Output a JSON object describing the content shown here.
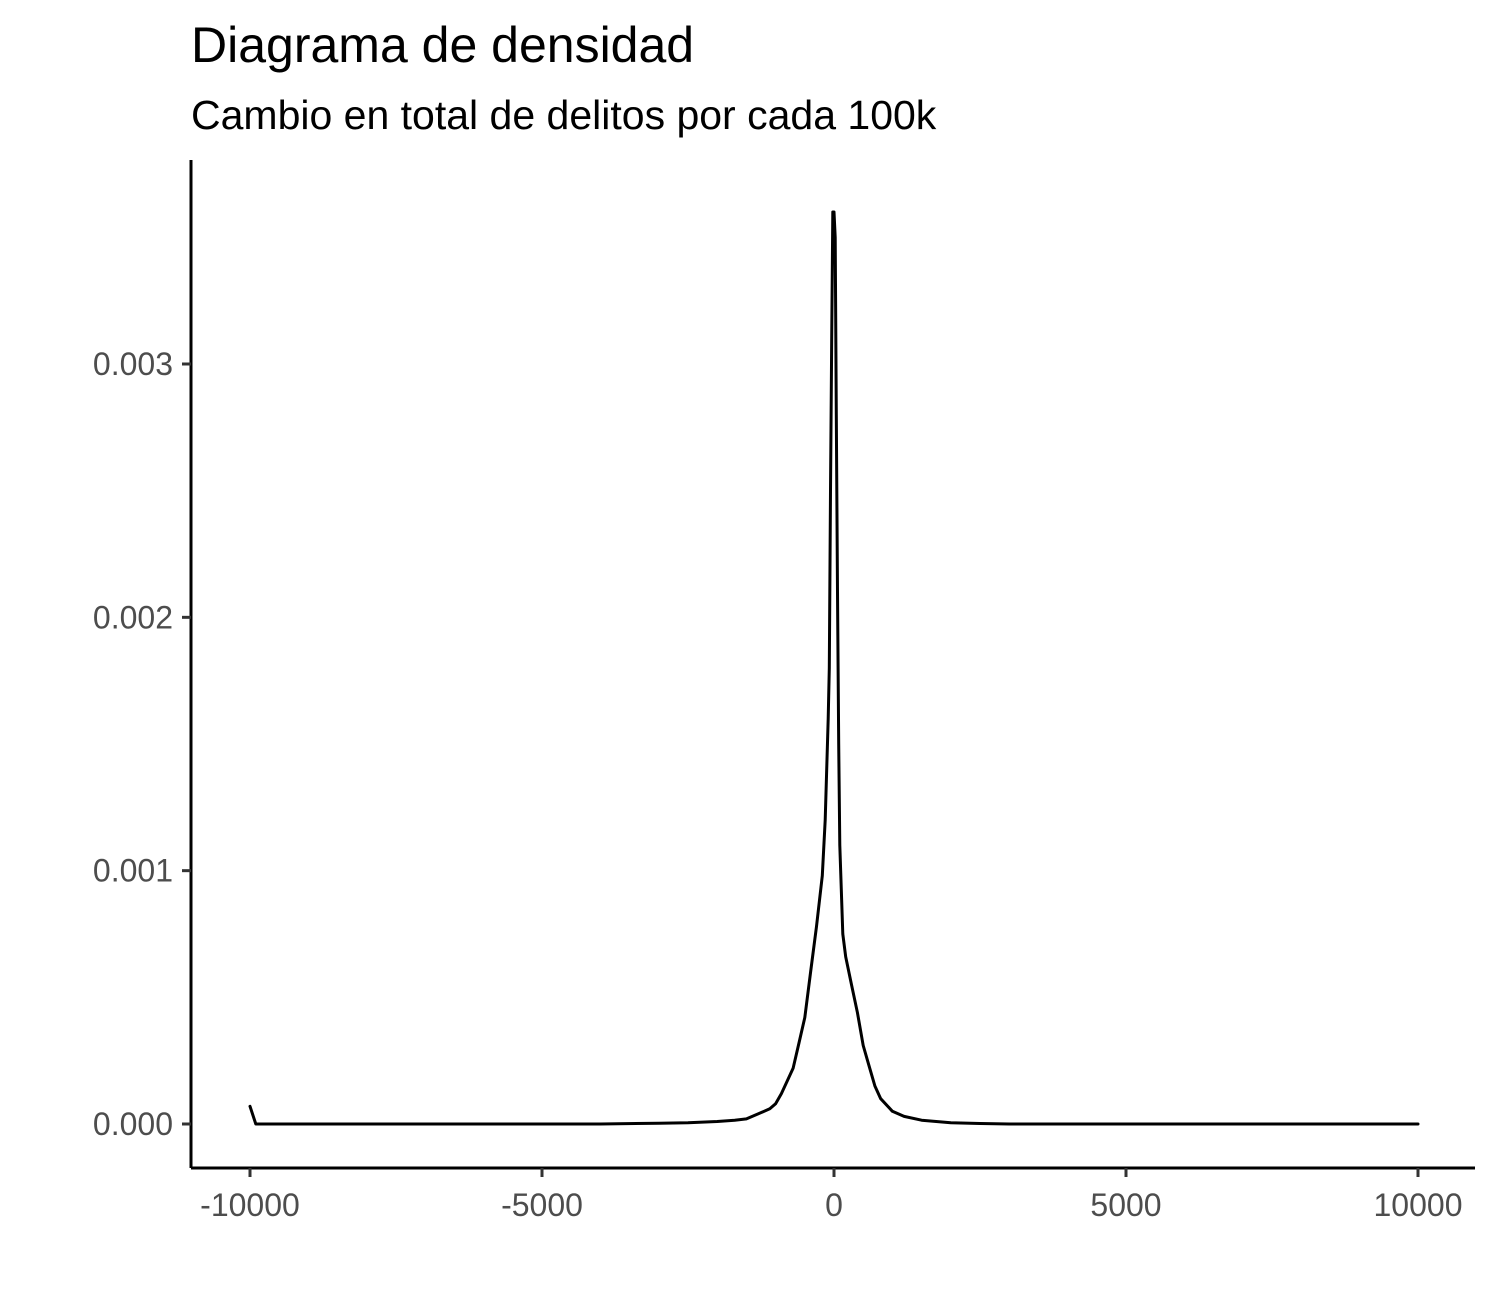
{
  "chart_data": {
    "type": "line",
    "title": "Diagrama de densidad",
    "subtitle": "Cambio en total de delitos por cada 100k",
    "xlabel": "",
    "ylabel": "",
    "xlim": [
      -11000,
      11000
    ],
    "ylim": [
      -0.00018,
      0.0038
    ],
    "grid": false,
    "x_ticks": [
      -10000,
      -5000,
      0,
      5000,
      10000
    ],
    "x_tick_labels": [
      "-10000",
      "-5000",
      "0",
      "5000",
      "10000"
    ],
    "y_ticks": [
      0,
      0.001,
      0.002,
      0.003
    ],
    "y_tick_labels": [
      "0.000",
      "0.001",
      "0.002",
      "0.003"
    ],
    "series": [
      {
        "color": "#000000",
        "x": [
          -10000,
          -9900,
          -9500,
          -8000,
          -6000,
          -4000,
          -3000,
          -2500,
          -2000,
          -1700,
          -1500,
          -1300,
          -1100,
          -1000,
          -900,
          -700,
          -600,
          -500,
          -400,
          -300,
          -200,
          -150,
          -100,
          -80,
          -60,
          -40,
          -20,
          0,
          20,
          40,
          60,
          80,
          100,
          150,
          200,
          300,
          400,
          500,
          600,
          700,
          800,
          1000,
          1200,
          1500,
          2000,
          2500,
          3000,
          5000,
          7500,
          10000
        ],
        "y": [
          7e-05,
          0.0,
          0.0,
          0.0,
          0.0,
          0.0,
          3e-06,
          5e-06,
          1e-05,
          1.5e-05,
          2e-05,
          4e-05,
          6e-05,
          8e-05,
          0.00012,
          0.00022,
          0.00032,
          0.00042,
          0.0006,
          0.00078,
          0.00098,
          0.0012,
          0.0016,
          0.0018,
          0.0025,
          0.0031,
          0.0036,
          0.0036,
          0.0035,
          0.0028,
          0.0021,
          0.0015,
          0.0011,
          0.00075,
          0.00066,
          0.00055,
          0.00044,
          0.00031,
          0.00023,
          0.00015,
          0.0001,
          5e-05,
          3e-05,
          1.5e-05,
          5e-06,
          2e-06,
          0.0,
          0.0,
          0.0,
          0.0
        ]
      }
    ]
  }
}
